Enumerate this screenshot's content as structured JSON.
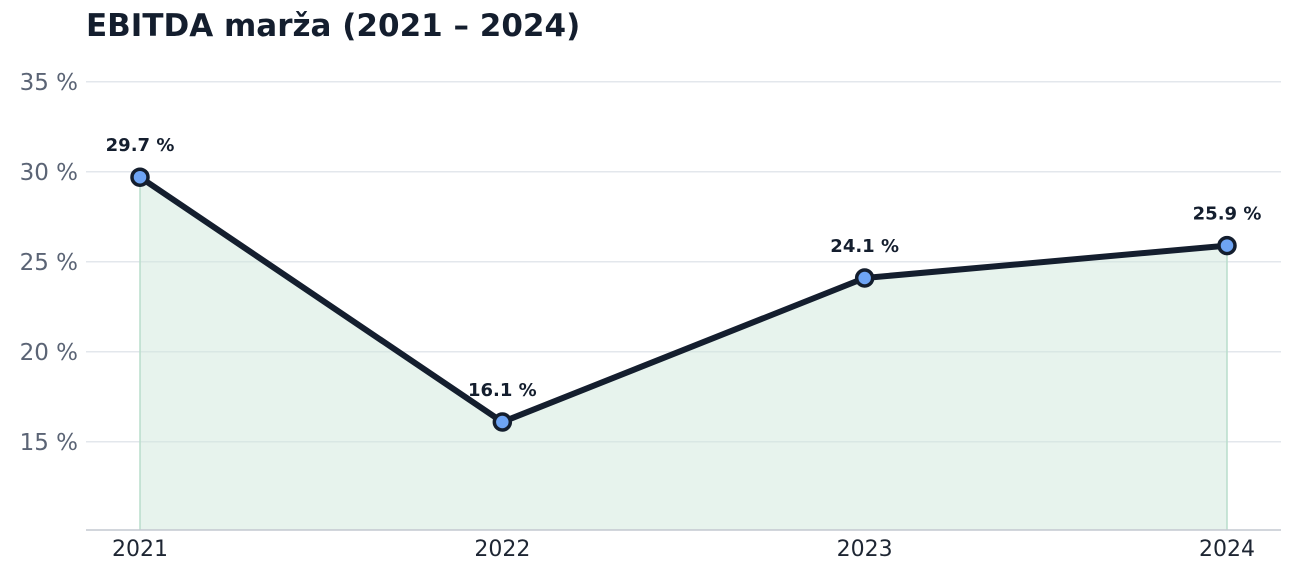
{
  "chart_data": {
    "type": "area",
    "title": "EBITDA marža (2021 – 2024)",
    "xlabel": "",
    "ylabel": "",
    "categories": [
      "2021",
      "2022",
      "2023",
      "2024"
    ],
    "values": [
      29.7,
      16.1,
      24.1,
      25.9
    ],
    "data_labels": [
      "29.7 %",
      "16.1 %",
      "24.1 %",
      "25.9 %"
    ],
    "yticks": [
      15,
      20,
      25,
      30,
      35
    ],
    "ytick_labels": [
      "15 %",
      "20 %",
      "25 %",
      "30 %",
      "35 %"
    ],
    "ylim": [
      10.1,
      36.6
    ],
    "grid": "horizontal",
    "colors": {
      "line": "#141e2e",
      "marker_fill": "#6ea4f4",
      "area_fill": "#cfe8dc",
      "grid": "#e3e7ec",
      "axis": "#c3c8d0"
    }
  }
}
